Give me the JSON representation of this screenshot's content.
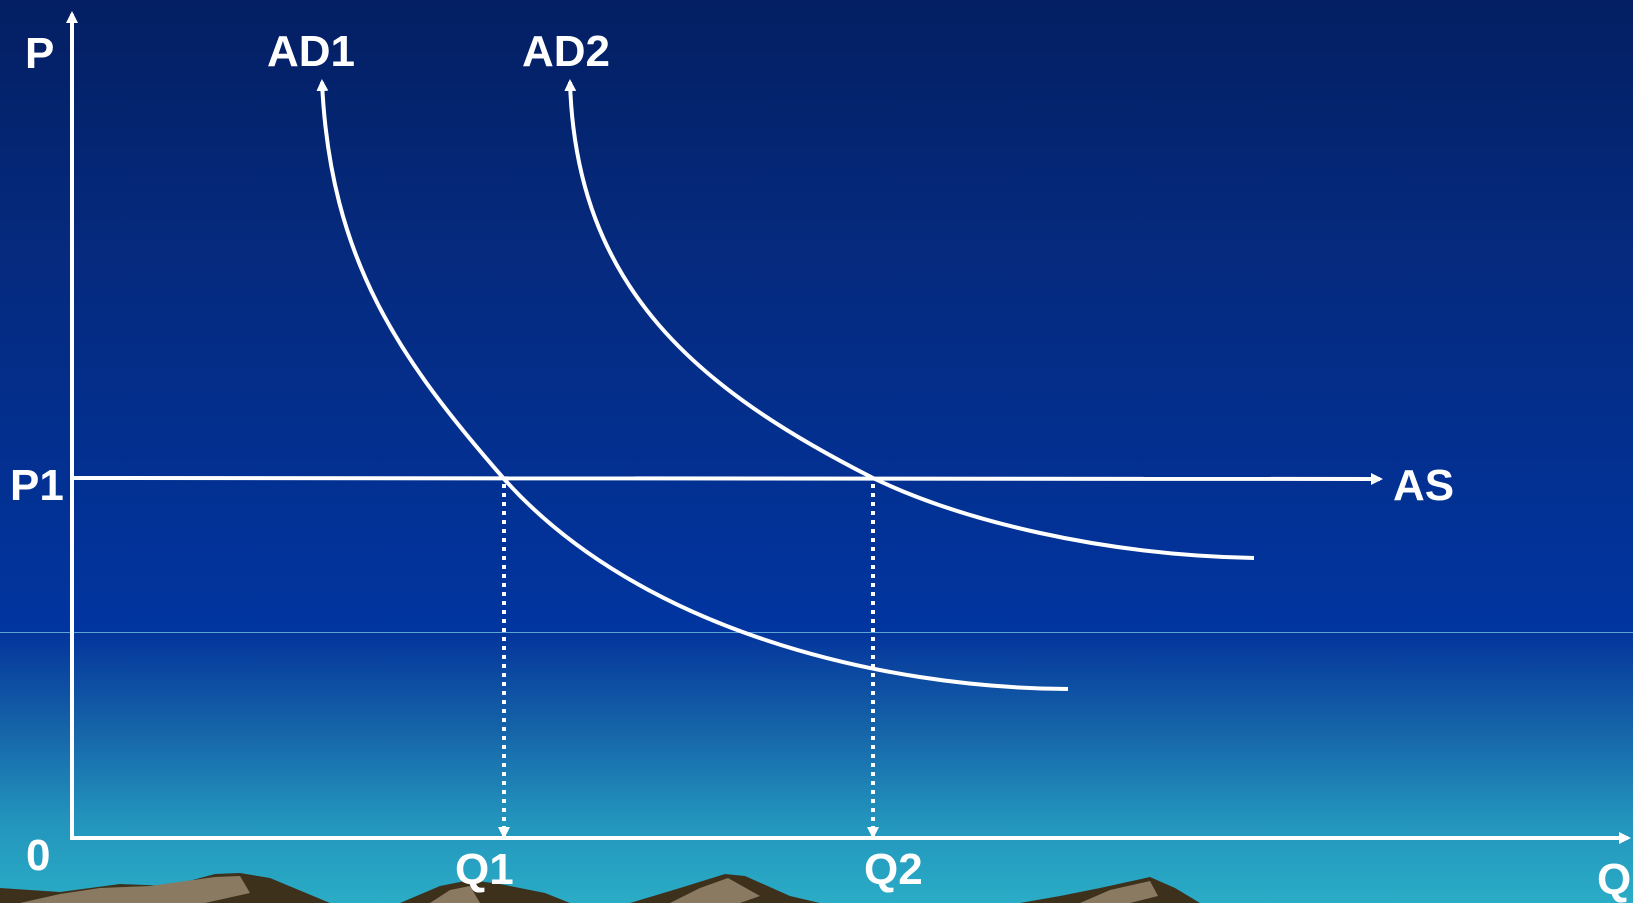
{
  "diagram": {
    "axis_labels": {
      "y": "P",
      "x": "Q",
      "origin": "0"
    },
    "curve_labels": {
      "ad1": "AD1",
      "ad2": "AD2",
      "as": "AS"
    },
    "level_labels": {
      "p1": "P1",
      "q1": "Q1",
      "q2": "Q2"
    }
  },
  "colors": {
    "sky_top": "#041f63",
    "sky_mid": "#0135a0",
    "water_bottom": "#2aacc6",
    "lines": "#ffffff",
    "mountain_dark": "#3d311c",
    "mountain_light": "#8a7a62"
  }
}
